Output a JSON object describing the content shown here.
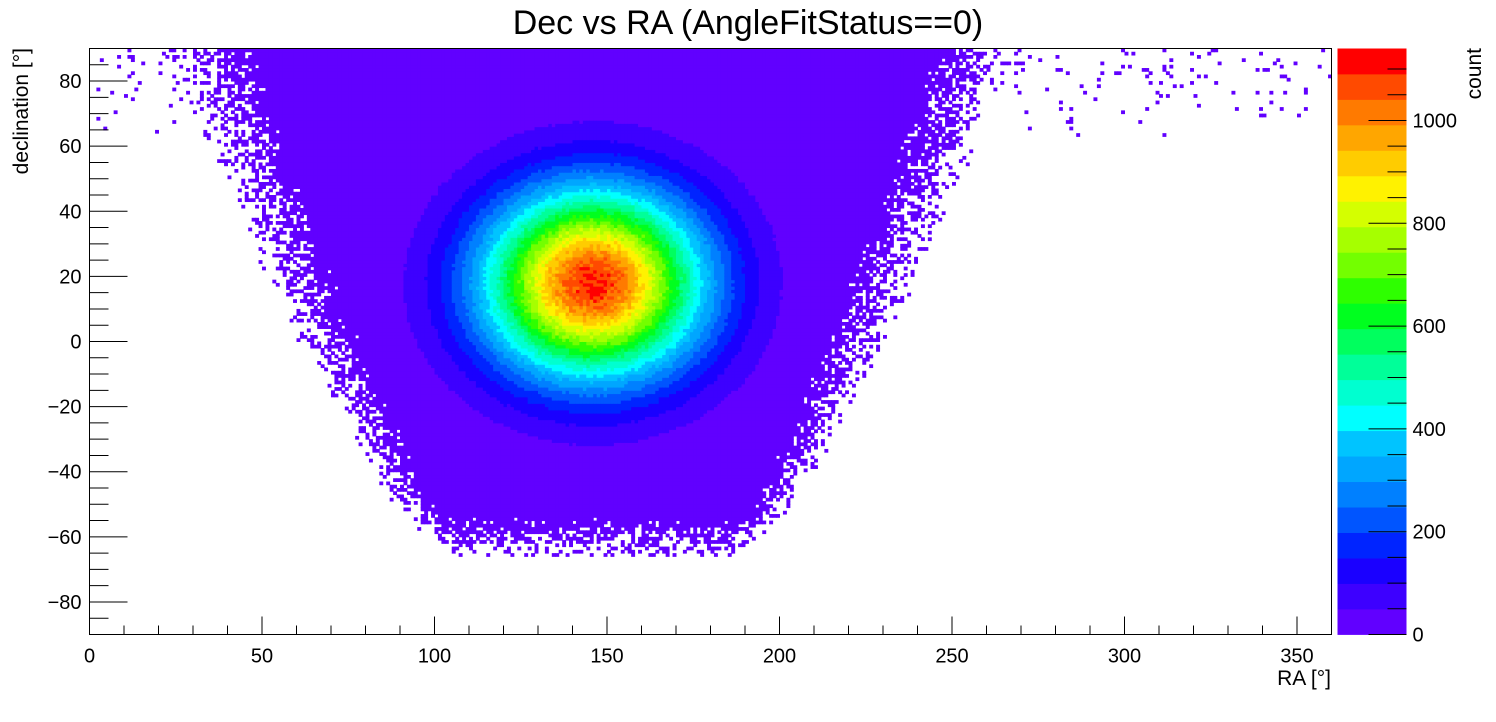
{
  "chart_data": {
    "type": "heatmap",
    "title": "Dec vs RA (AngleFitStatus==0)",
    "xlabel": "RA [°]",
    "ylabel": "declination [°]",
    "zlabel": "count",
    "xlim": [
      0,
      360
    ],
    "ylim": [
      -90,
      90
    ],
    "zlim": [
      0,
      1140
    ],
    "grid": false,
    "x_ticks": [
      {
        "value": 0,
        "label": "0"
      },
      {
        "value": 50,
        "label": "50"
      },
      {
        "value": 100,
        "label": "100"
      },
      {
        "value": 150,
        "label": "150"
      },
      {
        "value": 200,
        "label": "200"
      },
      {
        "value": 250,
        "label": "250"
      },
      {
        "value": 300,
        "label": "300"
      },
      {
        "value": 350,
        "label": "350"
      }
    ],
    "y_ticks": [
      {
        "value": -80,
        "label": "−80"
      },
      {
        "value": -60,
        "label": "−60"
      },
      {
        "value": -40,
        "label": "−40"
      },
      {
        "value": -20,
        "label": "−20"
      },
      {
        "value": 0,
        "label": "0"
      },
      {
        "value": 20,
        "label": "20"
      },
      {
        "value": 40,
        "label": "40"
      },
      {
        "value": 60,
        "label": "60"
      },
      {
        "value": 80,
        "label": "80"
      }
    ],
    "z_ticks": [
      {
        "value": 0,
        "label": "0"
      },
      {
        "value": 200,
        "label": "200"
      },
      {
        "value": 400,
        "label": "400"
      },
      {
        "value": 600,
        "label": "600"
      },
      {
        "value": 800,
        "label": "800"
      },
      {
        "value": 1000,
        "label": "1000"
      }
    ],
    "peak": {
      "ra": 146,
      "dec": 18,
      "count": 1140
    },
    "core": {
      "center_ra": 146,
      "center_dec": 18,
      "sigma_ra": 22,
      "sigma_dec": 20
    },
    "halo_extent": {
      "ra_min": 55,
      "ra_max": 265,
      "dec_min": -66,
      "dec_max": 90
    },
    "palette": [
      "#6100ff",
      "#3d00ff",
      "#1a00ff",
      "#0024ff",
      "#0055ff",
      "#0080ff",
      "#00a6ff",
      "#00c4ff",
      "#00ffff",
      "#00ffd0",
      "#00ff99",
      "#00ff5e",
      "#00ff1f",
      "#2eff00",
      "#73ff00",
      "#a6ff00",
      "#d4ff00",
      "#fff200",
      "#ffcc00",
      "#ffa600",
      "#ff7a00",
      "#ff4a00",
      "#ff0000"
    ]
  }
}
